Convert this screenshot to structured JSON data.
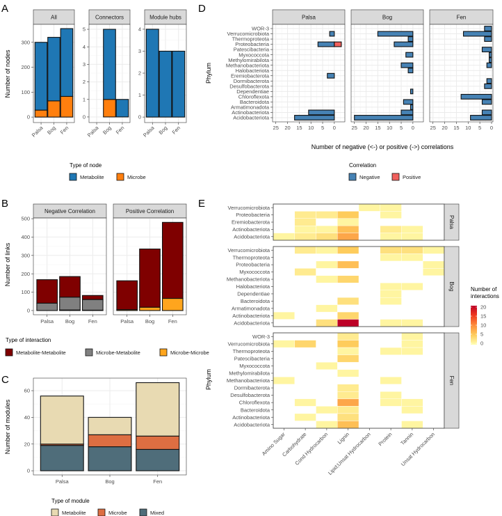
{
  "panel_letters": [
    "A",
    "B",
    "C",
    "D",
    "E"
  ],
  "colors": {
    "metabolite_node": "#1f77b4",
    "microbe_node": "#ff7f0e",
    "met_met": "#7f0000",
    "mic_met": "#808080",
    "mic_mic": "#ffa51d",
    "module_metabolite": "#e8dab2",
    "module_microbe": "#dd6e42",
    "module_mixed": "#4f6d7a",
    "negative": "#4682b4",
    "positive": "#f0605d",
    "heat_scale": [
      "#ffffb2",
      "#fecc5c",
      "#fd8d3c",
      "#f03b20",
      "#bd0026"
    ]
  },
  "chart_data": [
    {
      "panel": "A",
      "type": "bar",
      "stacked": true,
      "ylabel": "Number of nodes",
      "categories": [
        "Palsa",
        "Bog",
        "Fen"
      ],
      "legend": {
        "title": "Type of node",
        "entries": [
          "Metabolite",
          "Microbe"
        ]
      },
      "facets": [
        {
          "title": "All",
          "ylim": [
            -22,
            372
          ],
          "yticks": [
            0,
            100,
            200,
            300
          ],
          "series": [
            {
              "name": "Microbe",
              "values": [
                28,
                65,
                83
              ]
            },
            {
              "name": "Metabolite",
              "values": [
                272,
                255,
                272
              ]
            }
          ]
        },
        {
          "title": "Connectors",
          "ylim": [
            -0.32,
            5.28
          ],
          "yticks": [
            0,
            1,
            2,
            3,
            4,
            5
          ],
          "series": [
            {
              "name": "Microbe",
              "values": [
                0,
                1,
                0
              ]
            },
            {
              "name": "Metabolite",
              "values": [
                0,
                4,
                1
              ]
            }
          ]
        },
        {
          "title": "Module hubs",
          "ylim": [
            -0.25,
            4.22
          ],
          "yticks": [
            0,
            1,
            2,
            3,
            4
          ],
          "series": [
            {
              "name": "Microbe",
              "values": [
                0,
                0,
                0
              ]
            },
            {
              "name": "Metabolite",
              "values": [
                4,
                3,
                3
              ]
            }
          ]
        }
      ]
    },
    {
      "panel": "B",
      "type": "bar",
      "stacked": true,
      "ylabel": "Number of links",
      "categories": [
        "Palsa",
        "Bog",
        "Fen"
      ],
      "legend": {
        "title": "Type of interaction",
        "entries": [
          "Metabolite-Metabolite",
          "Microbe-Metabolite",
          "Microbe-Microbe"
        ]
      },
      "facets": [
        {
          "title": "Negative Correlation",
          "ylim": [
            -23,
            504
          ],
          "yticks": [
            0,
            100,
            200,
            300,
            400,
            500
          ],
          "series": [
            {
              "name": "Microbe-Microbe",
              "values": [
                0,
                3,
                2
              ]
            },
            {
              "name": "Microbe-Metabolite",
              "values": [
                40,
                70,
                58
              ]
            },
            {
              "name": "Metabolite-Metabolite",
              "values": [
                128,
                112,
                22
              ]
            }
          ]
        },
        {
          "title": "Positive Correlation",
          "ylim": [
            -23,
            504
          ],
          "yticks": [
            0,
            100,
            200,
            300,
            400,
            500
          ],
          "series": [
            {
              "name": "Microbe-Microbe",
              "values": [
                5,
                18,
                66
              ]
            },
            {
              "name": "Microbe-Metabolite",
              "values": [
                0,
                0,
                0
              ]
            },
            {
              "name": "Metabolite-Metabolite",
              "values": [
                157,
                317,
                414
              ]
            }
          ]
        }
      ]
    },
    {
      "panel": "C",
      "type": "bar",
      "stacked": true,
      "ylabel": "Number of modules",
      "categories": [
        "Palsa",
        "Bog",
        "Fen"
      ],
      "legend": {
        "title": "Type of module",
        "entries": [
          "Metabolite",
          "Microbe",
          "Mixed"
        ]
      },
      "facets": [
        {
          "title": "",
          "ylim": [
            -3.1,
            69.4
          ],
          "yticks": [
            0,
            20,
            40,
            60
          ],
          "series": [
            {
              "name": "Mixed",
              "values": [
                19,
                18,
                16
              ]
            },
            {
              "name": "Microbe",
              "values": [
                1,
                9,
                10
              ]
            },
            {
              "name": "Metabolite",
              "values": [
                36,
                13,
                40
              ]
            }
          ]
        }
      ]
    },
    {
      "panel": "D",
      "type": "bar",
      "orientation": "horizontal",
      "ylabel": "Phylum",
      "xlabel": "Number of negative (<-) or positive (->) correlations",
      "xtick_labels": [
        "25",
        "20",
        "15",
        "10",
        "5",
        "0"
      ],
      "xtick_values": [
        -25,
        -20,
        -15,
        -10,
        -5,
        0
      ],
      "phyla": [
        "WOR-3",
        "Verrucomicrobiota",
        "Thermoproteota",
        "Proteobacteria",
        "Patescibacteria",
        "Myxococcota",
        "Methylomirabilota",
        "Methanobacteriota",
        "Halobacteriota",
        "Eremiobacterota",
        "Dormibacterota",
        "Desulfobacterota",
        "Dependentiae",
        "Chloroflexota",
        "Bacteroidota",
        "Armatimonadota",
        "Actinobacteriota",
        "Acidobacteriota"
      ],
      "legend": {
        "title": "Correlation",
        "entries": [
          "Negative",
          "Positive"
        ]
      },
      "facets": [
        {
          "title": "Palsa",
          "xlim": [
            -26.4,
            4.5
          ],
          "negative": [
            0,
            -2,
            0,
            -7,
            0,
            0,
            0,
            0,
            0,
            -3,
            0,
            0,
            0,
            0,
            0,
            0,
            -11,
            -17
          ],
          "positive": [
            0,
            0,
            0,
            3,
            0,
            0,
            0,
            0,
            0,
            0,
            0,
            0,
            0,
            0,
            0,
            0,
            0,
            0
          ]
        },
        {
          "title": "Bog",
          "xlim": [
            -26.4,
            4.5
          ],
          "negative": [
            0,
            -15,
            -2,
            -8,
            0,
            -3,
            0,
            -5,
            -2,
            0,
            0,
            0,
            -1,
            0,
            -4,
            -1,
            -5,
            -25
          ],
          "positive": [
            0,
            0,
            0,
            0,
            0,
            0,
            0,
            0,
            0,
            0,
            0,
            0,
            0,
            0,
            0,
            0,
            0,
            0
          ]
        },
        {
          "title": "Fen",
          "xlim": [
            -26.4,
            0.6
          ],
          "negative": [
            -3,
            -12,
            -3,
            0,
            -4,
            -1,
            -1,
            -2,
            0,
            0,
            -2,
            -3,
            0,
            -13,
            -4,
            0,
            -4,
            -9
          ],
          "positive": [
            0,
            0,
            0,
            0,
            0,
            0,
            0,
            0,
            0,
            0,
            0,
            0,
            0,
            0,
            0,
            0,
            0,
            0
          ]
        }
      ]
    },
    {
      "panel": "E",
      "type": "heatmap",
      "ylabel": "Phylum",
      "columns": [
        "Amino Sugar",
        "Carbohydrate",
        "Cond Hydrocarbon",
        "Lignin",
        "Lipid;Unsat Hydrocarbon",
        "Protein",
        "Tannin",
        "Unsat Hydrocarbon"
      ],
      "legend": {
        "title_line1": "Number of",
        "title_line2": "interactions",
        "range": [
          0,
          20
        ],
        "ticks": [
          "0",
          "5",
          "10",
          "15",
          "20"
        ],
        "tick_values": [
          0,
          5,
          10,
          15,
          20
        ]
      },
      "facets": [
        {
          "title": "Palsa",
          "rows": [
            "Verrucomicrobiota",
            "Proteobacteria",
            "Eremiobacterota",
            "Actinobacteriota",
            "Acidobacteriota"
          ],
          "values": [
            [
              null,
              null,
              null,
              null,
              1,
              1,
              null,
              null
            ],
            [
              null,
              2,
              2,
              5,
              null,
              1,
              null,
              null
            ],
            [
              null,
              2,
              null,
              1,
              null,
              null,
              null,
              null
            ],
            [
              null,
              1,
              1,
              6,
              null,
              2,
              1,
              null
            ],
            [
              1,
              2,
              3,
              8,
              null,
              1,
              1,
              null
            ]
          ]
        },
        {
          "title": "Bog",
          "rows": [
            "Verrucomicrobiota",
            "Thermoproteota",
            "Proteobacteria",
            "Myxococcota",
            "Methanobacteriota",
            "Halobacteriota",
            "Dependentiae",
            "Bacteroidota",
            "Armatimonadota",
            "Actinobacteriota",
            "Acidobacteriota"
          ],
          "values": [
            [
              null,
              2,
              1,
              5,
              null,
              3,
              3,
              1
            ],
            [
              null,
              null,
              null,
              null,
              null,
              1,
              1,
              null
            ],
            [
              null,
              null,
              1,
              6,
              null,
              null,
              null,
              1
            ],
            [
              null,
              2,
              null,
              null,
              null,
              null,
              null,
              1
            ],
            [
              null,
              null,
              1,
              4,
              null,
              null,
              null,
              null
            ],
            [
              null,
              null,
              null,
              null,
              null,
              1,
              1,
              null
            ],
            [
              null,
              null,
              null,
              null,
              null,
              1,
              null,
              null
            ],
            [
              null,
              null,
              null,
              3,
              null,
              1,
              null,
              null
            ],
            [
              null,
              null,
              1,
              null,
              null,
              null,
              null,
              null
            ],
            [
              1,
              null,
              null,
              4,
              null,
              null,
              null,
              null
            ],
            [
              null,
              null,
              3,
              20,
              null,
              1,
              1,
              null
            ]
          ]
        },
        {
          "title": "Fen",
          "rows": [
            "WOR-3",
            "Verrucomicrobiota",
            "Thermoproteota",
            "Patescibacteria",
            "Myxococcota",
            "Methylomirabilota",
            "Methanobacteriota",
            "Dormibacterota",
            "Desulfobacterota",
            "Chloroflexota",
            "Bacteroidota",
            "Actinobacteriota",
            "Acidobacteriota"
          ],
          "values": [
            [
              null,
              null,
              null,
              2,
              null,
              null,
              1,
              null
            ],
            [
              1,
              4,
              null,
              5,
              null,
              null,
              1,
              null
            ],
            [
              null,
              null,
              null,
              1,
              null,
              1,
              1,
              null
            ],
            [
              null,
              null,
              null,
              4,
              null,
              null,
              null,
              null
            ],
            [
              null,
              null,
              1,
              null,
              null,
              null,
              null,
              null
            ],
            [
              null,
              null,
              null,
              1,
              null,
              null,
              null,
              null
            ],
            [
              1,
              null,
              null,
              null,
              null,
              1,
              null,
              null
            ],
            [
              null,
              null,
              null,
              2,
              null,
              null,
              null,
              null
            ],
            [
              null,
              null,
              null,
              2,
              null,
              1,
              null,
              null
            ],
            [
              null,
              1,
              null,
              8,
              null,
              1,
              1,
              null
            ],
            [
              null,
              null,
              1,
              2,
              null,
              null,
              1,
              null
            ],
            [
              null,
              1,
              null,
              3,
              null,
              null,
              null,
              null
            ],
            [
              null,
              null,
              1,
              6,
              null,
              null,
              1,
              null
            ]
          ]
        }
      ]
    }
  ]
}
